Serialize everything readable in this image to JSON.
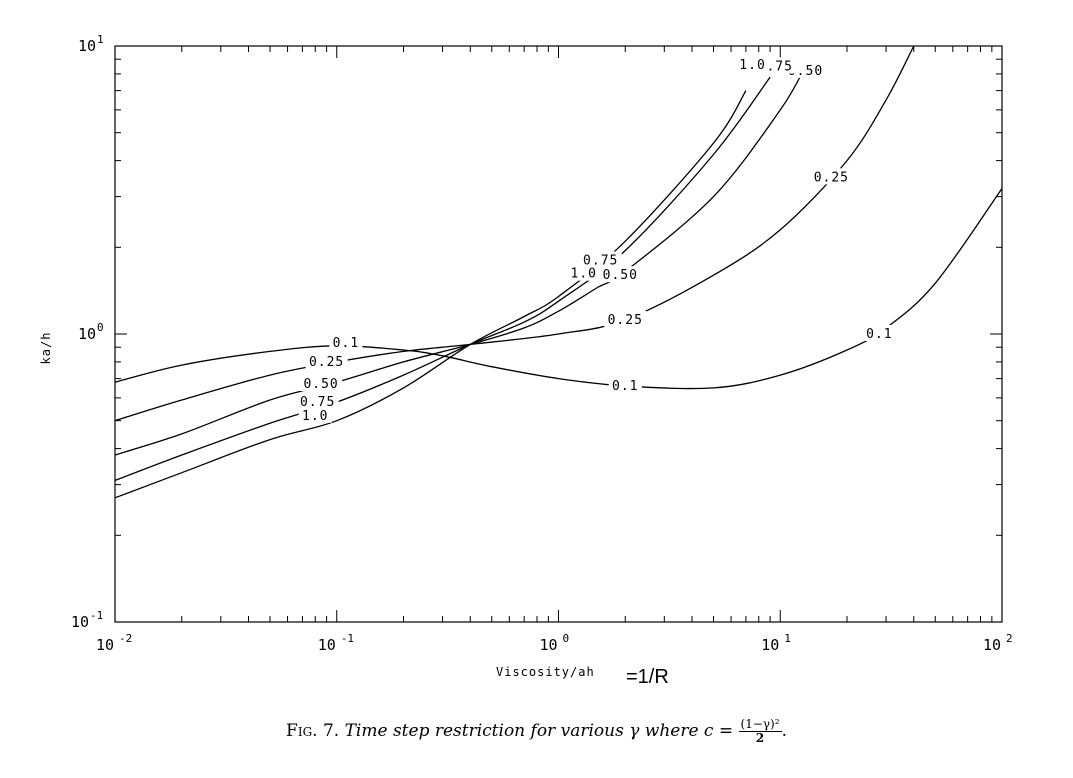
{
  "chart_data": {
    "type": "line",
    "xscale": "log",
    "yscale": "log",
    "xlim": [
      0.01,
      100
    ],
    "ylim": [
      0.1,
      10
    ],
    "xlabel": "Viscosity/ah",
    "xlabel_suffix": "=1/R",
    "ylabel": "ka/h",
    "xticks": [
      {
        "base": "10",
        "exp": "-2",
        "value": 0.01
      },
      {
        "base": "10",
        "exp": "-1",
        "value": 0.1
      },
      {
        "base": "10",
        "exp": "0",
        "value": 1
      },
      {
        "base": "10",
        "exp": "1",
        "value": 10
      },
      {
        "base": "10",
        "exp": "2",
        "value": 100
      }
    ],
    "yticks": [
      {
        "base": "10",
        "exp": "-1",
        "value": 0.1
      },
      {
        "base": "10",
        "exp": "0",
        "value": 1
      },
      {
        "base": "10",
        "exp": "1",
        "value": 10
      }
    ],
    "series": [
      {
        "name": "0.1",
        "points": [
          [
            0.01,
            0.68
          ],
          [
            0.02,
            0.78
          ],
          [
            0.05,
            0.87
          ],
          [
            0.1,
            0.91
          ],
          [
            0.2,
            0.88
          ],
          [
            0.3,
            0.84
          ],
          [
            0.5,
            0.77
          ],
          [
            1,
            0.7
          ],
          [
            2,
            0.66
          ],
          [
            5,
            0.65
          ],
          [
            10,
            0.72
          ],
          [
            20,
            0.88
          ],
          [
            30,
            1.05
          ],
          [
            50,
            1.5
          ],
          [
            100,
            3.2
          ]
        ],
        "labels": [
          {
            "text": "0.1",
            "x": 0.11,
            "y": 0.93
          },
          {
            "text": "0.1",
            "x": 2.0,
            "y": 0.66
          },
          {
            "text": "0.1",
            "x": 28,
            "y": 1.0
          }
        ]
      },
      {
        "name": "0.25",
        "points": [
          [
            0.01,
            0.5
          ],
          [
            0.02,
            0.59
          ],
          [
            0.05,
            0.72
          ],
          [
            0.1,
            0.8
          ],
          [
            0.2,
            0.87
          ],
          [
            0.4,
            0.92
          ],
          [
            1,
            1.0
          ],
          [
            2,
            1.12
          ],
          [
            5,
            1.6
          ],
          [
            10,
            2.3
          ],
          [
            20,
            4.0
          ],
          [
            30,
            6.5
          ],
          [
            40,
            10
          ]
        ],
        "labels": [
          {
            "text": "0.25",
            "x": 0.09,
            "y": 0.8
          },
          {
            "text": "0.25",
            "x": 2.0,
            "y": 1.12
          },
          {
            "text": "0.25",
            "x": 17,
            "y": 3.5
          }
        ]
      },
      {
        "name": "0.50",
        "points": [
          [
            0.01,
            0.38
          ],
          [
            0.02,
            0.45
          ],
          [
            0.05,
            0.59
          ],
          [
            0.1,
            0.68
          ],
          [
            0.2,
            0.8
          ],
          [
            0.4,
            0.92
          ],
          [
            0.7,
            1.05
          ],
          [
            1,
            1.2
          ],
          [
            1.5,
            1.45
          ],
          [
            2,
            1.65
          ],
          [
            5,
            3.0
          ],
          [
            10,
            6.0
          ],
          [
            13,
            8.5
          ]
        ],
        "labels": [
          {
            "text": "0.50",
            "x": 0.085,
            "y": 0.67
          },
          {
            "text": "0.50",
            "x": 1.9,
            "y": 1.6
          },
          {
            "text": "0.50",
            "x": 13,
            "y": 8.2
          }
        ]
      },
      {
        "name": "0.75",
        "points": [
          [
            0.01,
            0.31
          ],
          [
            0.02,
            0.38
          ],
          [
            0.05,
            0.49
          ],
          [
            0.1,
            0.58
          ],
          [
            0.2,
            0.72
          ],
          [
            0.4,
            0.92
          ],
          [
            0.7,
            1.1
          ],
          [
            1,
            1.3
          ],
          [
            2,
            1.95
          ],
          [
            5,
            4.2
          ],
          [
            9,
            7.8
          ]
        ],
        "labels": [
          {
            "text": "0.75",
            "x": 0.082,
            "y": 0.58
          },
          {
            "text": "0.75",
            "x": 1.55,
            "y": 1.8
          },
          {
            "text": "0.75",
            "x": 9.5,
            "y": 8.5
          }
        ]
      },
      {
        "name": "1.0",
        "points": [
          [
            0.01,
            0.27
          ],
          [
            0.02,
            0.33
          ],
          [
            0.05,
            0.43
          ],
          [
            0.1,
            0.5
          ],
          [
            0.2,
            0.65
          ],
          [
            0.4,
            0.92
          ],
          [
            0.7,
            1.15
          ],
          [
            1,
            1.35
          ],
          [
            2,
            2.1
          ],
          [
            5,
            4.6
          ],
          [
            7,
            7.0
          ]
        ],
        "labels": [
          {
            "text": "1.0",
            "x": 0.08,
            "y": 0.52
          },
          {
            "text": "1.0",
            "x": 1.3,
            "y": 1.62
          },
          {
            "text": "1.0",
            "x": 7.5,
            "y": 8.6
          }
        ]
      }
    ],
    "caption": {
      "fig": "Fig. 7.",
      "text": "Time step restriction for various γ where c =",
      "numerator": "(1−γ)²",
      "denominator": "2",
      "end": "."
    }
  }
}
